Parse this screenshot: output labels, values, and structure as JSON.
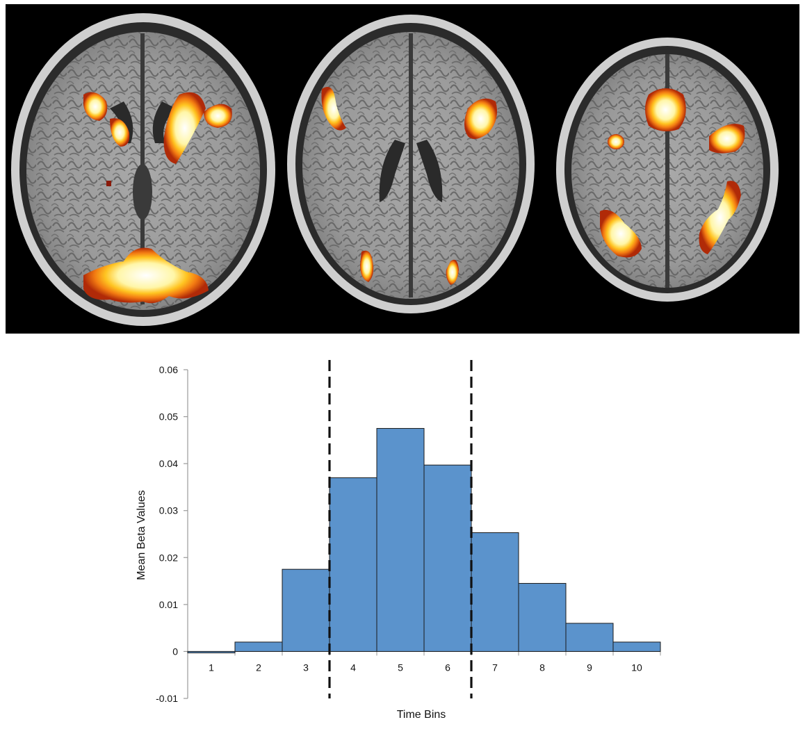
{
  "brain_images": {
    "count": 3,
    "background": "#000000",
    "activation_colors": [
      "#ffffff",
      "#fff6a8",
      "#ffc421",
      "#f27a12",
      "#c8320a",
      "#7a1405"
    ]
  },
  "chart_data": {
    "type": "bar",
    "categories": [
      "1",
      "2",
      "3",
      "4",
      "5",
      "6",
      "7",
      "8",
      "9",
      "10"
    ],
    "values": [
      -0.0003,
      0.002,
      0.0175,
      0.037,
      0.0475,
      0.0397,
      0.0253,
      0.0145,
      0.006,
      0.002
    ],
    "xlabel": "Time Bins",
    "ylabel": "Mean Beta Values",
    "ylim": [
      -0.01,
      0.06
    ],
    "yticks": [
      "-0.01",
      "0",
      "0.01",
      "0.02",
      "0.03",
      "0.04",
      "0.05",
      "0.06"
    ],
    "dashed_lines_between": [
      [
        3,
        4
      ],
      [
        6,
        7
      ]
    ],
    "bar_color": "#5b93cc",
    "bar_edge": "#1a1a1a",
    "grid": false,
    "legend": "none"
  }
}
